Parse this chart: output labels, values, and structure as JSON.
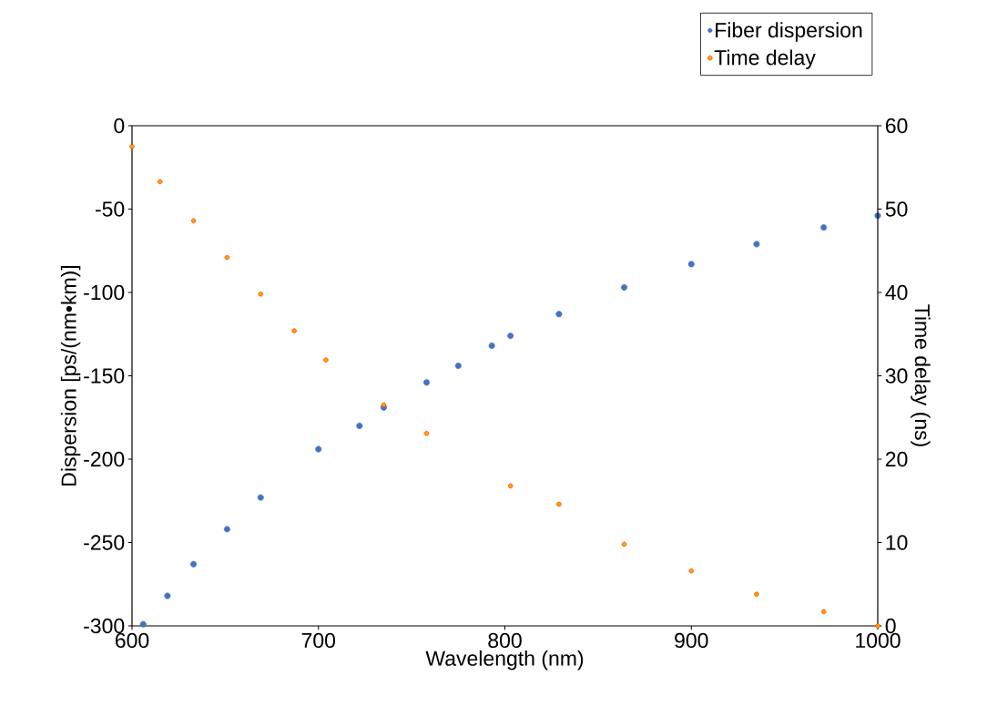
{
  "chart_data": {
    "type": "scatter",
    "xlabel": "Wavelength (nm)",
    "ylabel": "Dispersion [ps/(nm•km)]",
    "y2label": "Time delay (ns)",
    "xlim": [
      600,
      1000
    ],
    "xticks": [
      600,
      700,
      800,
      900,
      1000
    ],
    "ylim": [
      -300,
      0
    ],
    "yticks": [
      -300,
      -250,
      -200,
      -150,
      -100,
      -50,
      0
    ],
    "y2lim": [
      0,
      60
    ],
    "y2ticks": [
      0,
      10,
      20,
      30,
      40,
      50,
      60
    ],
    "marker": "circle",
    "legend": "top right",
    "series": [
      {
        "name": "Fiber dispersion",
        "color": "#4472c4",
        "x": [
          606,
          619,
          633,
          651,
          669,
          700,
          722,
          735,
          758,
          775,
          793,
          803,
          829,
          864,
          900,
          935,
          971,
          1000
        ],
        "values": [
          -299,
          -282,
          -263,
          -242,
          -223,
          -194,
          -180,
          -169,
          -154,
          -144,
          -132,
          -126,
          -113,
          -97,
          -83,
          -71,
          -61,
          -54
        ]
      },
      {
        "name": "Time delay",
        "color": "#ff2a00",
        "axis": "y2",
        "x": [
          600,
          615,
          633,
          651,
          669,
          687,
          704,
          735,
          758,
          803,
          829,
          864,
          900,
          935,
          971,
          1000
        ],
        "values": [
          57.5,
          53.3,
          48.6,
          44.2,
          39.8,
          35.4,
          31.9,
          26.5,
          23.1,
          16.8,
          14.6,
          9.8,
          6.6,
          3.8,
          1.7,
          0
        ]
      }
    ]
  }
}
